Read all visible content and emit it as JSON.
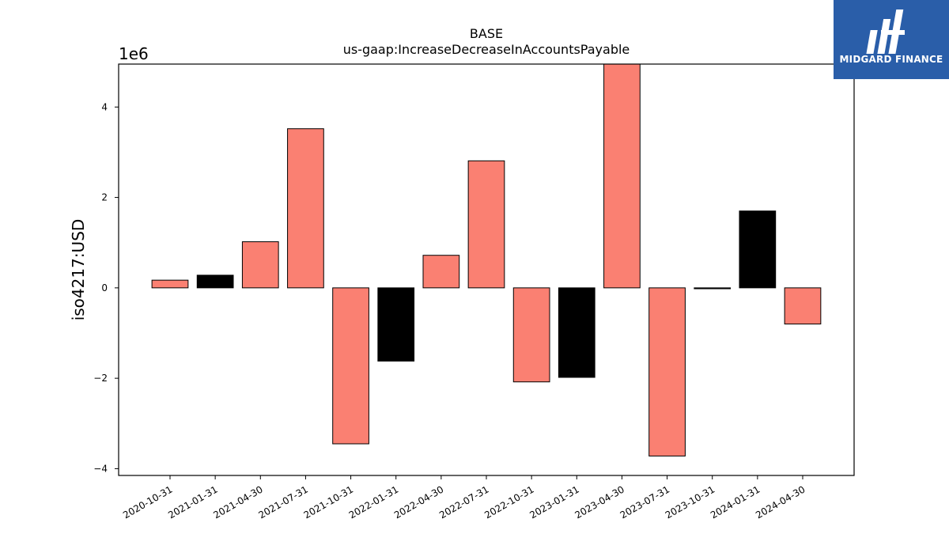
{
  "chart_data": {
    "type": "bar",
    "title": "BASE",
    "subtitle": "us-gaap:IncreaseDecreaseInAccountsPayable",
    "ylabel": "iso4217:USD",
    "xlabel": "",
    "y_offset_label": "1e6",
    "ylim": [
      -4.15,
      4.95
    ],
    "yticks": [
      -4,
      -2,
      0,
      2,
      4
    ],
    "ytick_labels": [
      "−4",
      "−2",
      "0",
      "2",
      "4"
    ],
    "categories": [
      "2020-10-31",
      "2021-01-31",
      "2021-04-30",
      "2021-07-31",
      "2021-10-31",
      "2022-01-31",
      "2022-04-30",
      "2022-07-31",
      "2022-10-31",
      "2023-01-31",
      "2023-04-30",
      "2023-07-31",
      "2023-10-31",
      "2024-01-31",
      "2024-04-30"
    ],
    "values": [
      0.17,
      0.28,
      1.02,
      3.52,
      -3.45,
      -1.62,
      0.72,
      2.81,
      -2.08,
      -1.98,
      4.98,
      -3.72,
      -0.02,
      1.7,
      -0.8
    ],
    "bar_colors": [
      "#fa8072",
      "#000000",
      "#fa8072",
      "#fa8072",
      "#fa8072",
      "#000000",
      "#fa8072",
      "#fa8072",
      "#fa8072",
      "#000000",
      "#fa8072",
      "#fa8072",
      "#000000",
      "#000000",
      "#fa8072"
    ],
    "grid": false,
    "legend": "none"
  },
  "logo": {
    "text": "MIDGARD FINANCE",
    "background": "#2a5ea9"
  }
}
